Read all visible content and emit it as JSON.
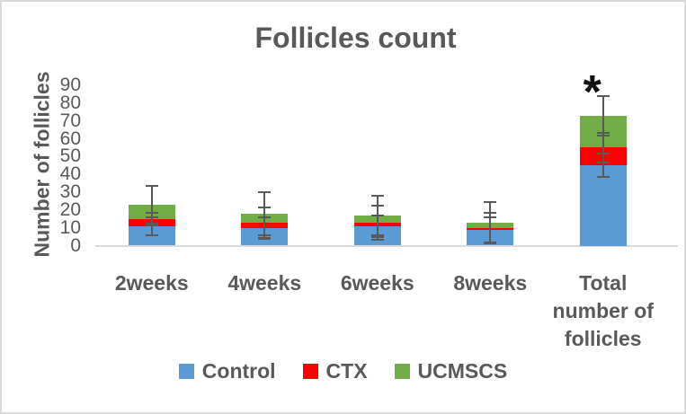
{
  "figure": {
    "title": "Follicles count",
    "significance_marker": "*"
  },
  "colors": {
    "control": "#5B9BD5",
    "ctx": "#FE0000",
    "ucmscs": "#70AD47",
    "text": "#595959",
    "error_bar": "#595959",
    "axis_line": "#d9d9d9"
  },
  "chart_data": {
    "type": "bar",
    "stacked": true,
    "title": "Follicles count",
    "xlabel": "",
    "ylabel": "Number of follicles",
    "ylim": [
      0,
      90
    ],
    "ytick_step": 10,
    "grid": false,
    "legend_position": "bottom",
    "categories": [
      "2weeks",
      "4weeks",
      "6weeks",
      "8weeks",
      "Total number of follicles"
    ],
    "series": [
      {
        "name": "Control",
        "color": "#5B9BD5",
        "values": [
          11,
          10,
          11,
          9,
          45
        ],
        "errors": [
          5,
          6,
          6,
          7,
          6.5
        ]
      },
      {
        "name": "CTX",
        "color": "#FE0000",
        "values": [
          4,
          3,
          2,
          1,
          10
        ],
        "errors": [
          3.5,
          8.5,
          9.5,
          8.5,
          8.5
        ]
      },
      {
        "name": "UCMSCS",
        "color": "#70AD47",
        "values": [
          8,
          5,
          4,
          3,
          18
        ],
        "errors": [
          10.5,
          12,
          11,
          11.5,
          11
        ]
      }
    ],
    "totals": [
      23,
      18,
      17,
      13,
      73
    ],
    "annotations": [
      {
        "text": "*",
        "category_index": 4,
        "value": 88
      }
    ]
  }
}
